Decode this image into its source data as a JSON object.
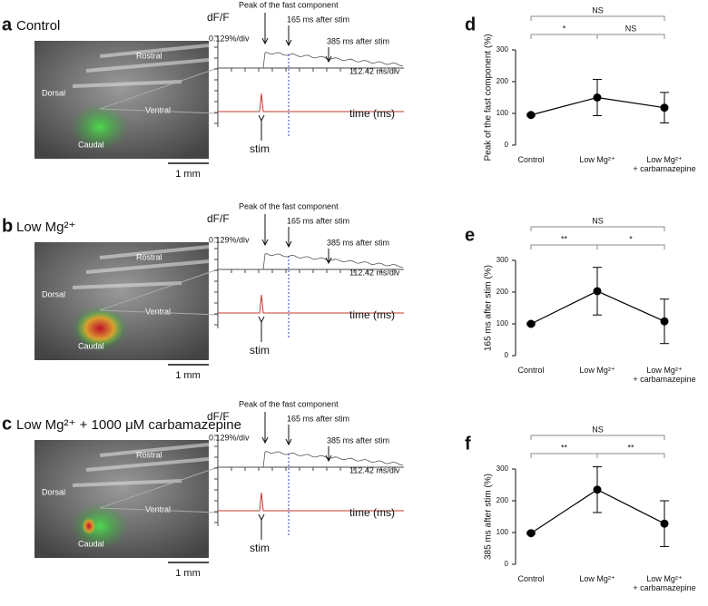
{
  "image_panels": [
    {
      "letter": "a",
      "title": "Control",
      "rostral": "Rostral",
      "dorsal": "Dorsal",
      "ventral": "Ventral",
      "caudal": "Caudal",
      "scale": "1 mm",
      "ylabel": "dF/F",
      "ydiv": "0.129%/div",
      "xdiv": "112.42 ms/div",
      "xlabel": "time (ms)",
      "stim": "stim",
      "peak": "Peak of the fast component",
      "t165": "165 ms after stim",
      "t385": "385 ms after stim"
    },
    {
      "letter": "b",
      "title": "Low Mg²⁺",
      "rostral": "Rostral",
      "dorsal": "Dorsal",
      "ventral": "Ventral",
      "caudal": "Caudal",
      "scale": "1 mm",
      "ylabel": "dF/F",
      "ydiv": "0.129%/div",
      "xdiv": "112.42 ms/div",
      "xlabel": "time (ms)",
      "stim": "stim",
      "peak": "Peak of the fast component",
      "t165": "165 ms after stim",
      "t385": "385 ms after stim"
    },
    {
      "letter": "c",
      "title": "Low Mg²⁺ + 1000 μM carbamazepine",
      "rostral": "Rostral",
      "dorsal": "Dorsal",
      "ventral": "Ventral",
      "caudal": "Caudal",
      "scale": "1 mm",
      "ylabel": "dF/F",
      "ydiv": "0.129%/div",
      "xdiv": "112.42 ms/div",
      "xlabel": "time (ms)",
      "stim": "stim",
      "peak": "Peak of the fast component",
      "t165": "165 ms after stim",
      "t385": "385 ms after stim"
    }
  ],
  "chart_data": [
    {
      "type": "line",
      "letter": "d",
      "ylabel": "Peak of the fast component (%)",
      "categories": [
        "Control",
        "Low Mg²⁺",
        "Low Mg²⁺\n+ carbamazepine"
      ],
      "values": [
        95,
        150,
        118
      ],
      "errors": [
        3,
        57,
        48
      ],
      "color": "#000000",
      "ylim": [
        0,
        300
      ],
      "yticks": [
        0,
        100,
        200,
        300
      ],
      "significance": [
        "*",
        "NS",
        "NS"
      ]
    },
    {
      "type": "line",
      "letter": "e",
      "ylabel": "165 ms after stim (%)",
      "categories": [
        "Control",
        "Low Mg²⁺",
        "Low Mg²⁺\n+ carbamazepine"
      ],
      "values": [
        100,
        203,
        108
      ],
      "errors": [
        3,
        75,
        70
      ],
      "color": "#000000",
      "ylim": [
        0,
        300
      ],
      "yticks": [
        0,
        100,
        200,
        300
      ],
      "significance": [
        "**",
        "*",
        "NS"
      ]
    },
    {
      "type": "line",
      "letter": "f",
      "ylabel": "385 ms after stim (%)",
      "categories": [
        "Control",
        "Low Mg²⁺",
        "Low Mg²⁺\n+ carbamazepine"
      ],
      "values": [
        98,
        235,
        128
      ],
      "errors": [
        3,
        72,
        72
      ],
      "color": "#000000",
      "ylim": [
        0,
        300
      ],
      "yticks": [
        0,
        100,
        200,
        300
      ],
      "significance": [
        "**",
        "**",
        "NS"
      ]
    }
  ]
}
